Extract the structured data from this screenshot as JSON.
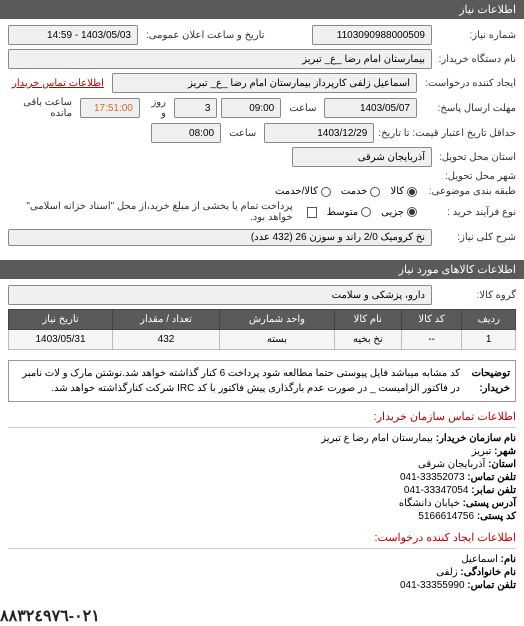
{
  "header": {
    "title": "اطلاعات نیاز"
  },
  "form": {
    "need_no_label": "شماره نیاز:",
    "need_no": "1103090988000509",
    "announce_label": "تاریخ و ساعت اعلان عمومی:",
    "announce_value": "1403/05/03 - 14:59",
    "buyer_unit_label": "نام دستگاه خریدار:",
    "buyer_unit": "بیمارستان امام رضا _ع_ تبریز",
    "requester_label": "ایجاد کننده درخواست:",
    "requester": "اسماعیل زلفی کارپرداز بیمارستان امام رضا _ع_ تبریز",
    "contact_link": "اطلاعات تماس خریدار",
    "deadline_label": "مهلت ارسال پاسخ:",
    "deadline_until": "تا تاریخ:",
    "deadline_date": "1403/05/07",
    "time_label": "ساعت",
    "deadline_time": "09:00",
    "days_label": "روز و",
    "days": "3",
    "remain_time": "17:51:00",
    "remain_label": "ساعت باقی مانده",
    "valid_label": "حداقل تاریخ اعتبار قیمت: تا تاریخ:",
    "valid_date": "1403/12/29",
    "valid_time": "08:00",
    "province_label": "استان محل تحویل:",
    "province": "آذربایجان شرقی",
    "city_label": "شهر محل تحویل:",
    "subject_type_label": "طبقه بندی موضوعی:",
    "opt_kala": "کالا",
    "opt_khadamat": "خدمت",
    "opt_both": "کالا/خدمت",
    "process_label": "نوع فرآیند خرید :",
    "opt_jozi": "جزیی",
    "opt_motavaset": "متوسط",
    "pay_note": "پرداخت تمام یا بخشی از مبلغ خرید،از محل \"اسناد خزانه اسلامی\" خواهد بود.",
    "need_title_label": "شرح کلی نیاز:",
    "need_title": "نخ کرومیک 2/0 راند و سوزن 26 (432 عدد)"
  },
  "items_section": {
    "header": "اطلاعات کالاهای مورد نیاز",
    "group_label": "گروه کالا:",
    "group": "دارو، پزشکی و سلامت"
  },
  "table": {
    "cols": [
      "ردیف",
      "کد کالا",
      "نام کالا",
      "واحد شمارش",
      "تعداد / مقدار",
      "تاریخ نیاز"
    ],
    "rows": [
      [
        "1",
        "--",
        "نخ بخیه",
        "بسته",
        "432",
        "1403/05/31"
      ]
    ]
  },
  "notes": {
    "label": "توضیحات خریدار:",
    "text": "کد مشابه میباشد فایل پیوستی حتما مطالعه شود پرداخت 6 کنار گذاشته خواهد شد.نوشتن مارک و لات نامبر در فاکتور الزامیست _ در صورت عدم بارگذاری پیش فاکتور با کد IRC شرکت کنارگذاشته خواهد شد."
  },
  "contact": {
    "header": "اطلاعات تماس سازمان خریدار:",
    "org_label": "نام سازمان خریدار:",
    "org": "بیمارستان امام رضا ع تبریز",
    "city_label": "شهر:",
    "city": "تبریز",
    "province_label": "استان:",
    "province": "آذربایجان شرقی",
    "tel_label": "تلفن تماس:",
    "tel": "041-33352073",
    "fax_label": "تلفن نمابر:",
    "fax": "041-33347054",
    "addr_label": "آدرس پستی:",
    "addr": "خیابان دانشگاه",
    "post_label": "کد پستی:",
    "post": "5166614756",
    "creator_header": "اطلاعات ایجاد کننده درخواست:",
    "name_label": "نام:",
    "name": "اسماعیل",
    "lname_label": "نام خانوادگی:",
    "lname": "زلفی",
    "ctel_label": "تلفن تماس:",
    "ctel": "041-33355990"
  },
  "footer_phone": "٠٢١-٨٨٣٢٤٩٧٦"
}
